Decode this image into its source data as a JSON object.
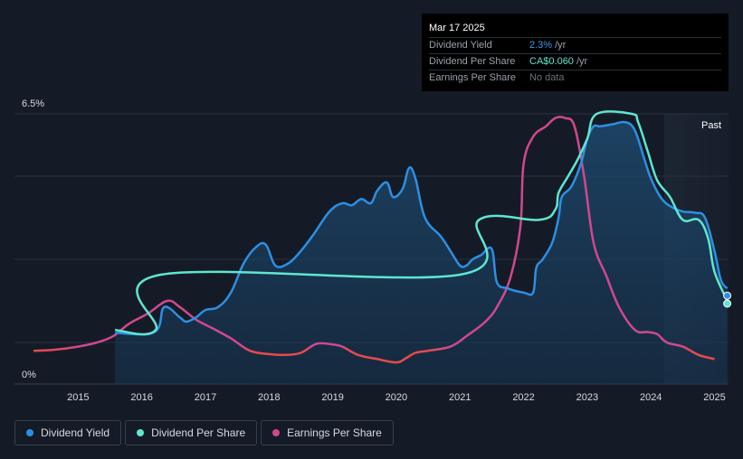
{
  "tooltip": {
    "date": "Mar 17 2025",
    "rows": [
      {
        "label": "Dividend Yield",
        "value": "2.3%",
        "unit": "/yr",
        "color": "#3b9ae8"
      },
      {
        "label": "Dividend Per Share",
        "value": "CA$0.060",
        "unit": "/yr",
        "color": "#5ee6d0"
      },
      {
        "label": "Earnings Per Share",
        "value": "No data",
        "unit": "",
        "color": "#6b7079"
      }
    ]
  },
  "past_label": "Past",
  "colors": {
    "yield": "#2d8fe3",
    "dps": "#5ee6d0",
    "eps": "#d0488f",
    "eps_negative": "#e84a4a",
    "background": "#151b26"
  },
  "legend": [
    {
      "label": "Dividend Yield",
      "color": "#2d8fe3"
    },
    {
      "label": "Dividend Per Share",
      "color": "#5ee6d0"
    },
    {
      "label": "Earnings Per Share",
      "color": "#d0488f"
    }
  ],
  "chart_data": {
    "type": "line",
    "title": "",
    "xlabel": "",
    "ylabel": "",
    "ylim": [
      0,
      6.5
    ],
    "xlim": [
      2014.0,
      2025.22
    ],
    "x_ticks": [
      "2015",
      "2016",
      "2017",
      "2018",
      "2019",
      "2020",
      "2021",
      "2022",
      "2023",
      "2024",
      "2025"
    ],
    "y_ticks": [
      "0%",
      "6.5%"
    ],
    "grid": true,
    "past_region_start": 2024.21,
    "series": [
      {
        "name": "Dividend Yield",
        "unit": "%",
        "x": [
          2015.58,
          2016.2,
          2016.35,
          2016.6,
          2016.7,
          2016.85,
          2017.0,
          2017.2,
          2017.4,
          2017.6,
          2017.8,
          2017.95,
          2018.1,
          2018.3,
          2018.5,
          2018.7,
          2018.95,
          2019.15,
          2019.3,
          2019.45,
          2019.6,
          2019.7,
          2019.85,
          2019.95,
          2020.1,
          2020.2,
          2020.3,
          2020.45,
          2020.7,
          2020.85,
          2021.0,
          2021.1,
          2021.2,
          2021.33,
          2021.5,
          2021.58,
          2021.75,
          2022.0,
          2022.15,
          2022.2,
          2022.3,
          2022.45,
          2022.55,
          2022.6,
          2022.75,
          2022.9,
          2023.0,
          2023.1,
          2023.2,
          2023.4,
          2023.6,
          2023.75,
          2023.9,
          2024.0,
          2024.15,
          2024.3,
          2024.5,
          2024.7,
          2024.85,
          2025.0,
          2025.1,
          2025.2
        ],
        "values": [
          1.23,
          1.25,
          1.85,
          1.6,
          1.5,
          1.6,
          1.78,
          1.85,
          2.2,
          2.9,
          3.3,
          3.35,
          2.85,
          2.9,
          3.2,
          3.6,
          4.15,
          4.35,
          4.3,
          4.45,
          4.35,
          4.65,
          4.85,
          4.5,
          4.7,
          5.2,
          4.95,
          4.0,
          3.55,
          3.2,
          2.85,
          2.85,
          3.0,
          3.1,
          3.25,
          2.45,
          2.3,
          2.2,
          2.2,
          2.8,
          3.0,
          3.4,
          4.0,
          4.5,
          4.75,
          5.3,
          5.9,
          6.2,
          6.2,
          6.25,
          6.3,
          6.1,
          5.4,
          4.95,
          4.5,
          4.28,
          4.15,
          4.12,
          4.0,
          3.2,
          2.5,
          2.3
        ]
      },
      {
        "name": "Dividend Per Share",
        "unit": "CA$",
        "x": [
          2015.58,
          2016.22,
          2016.3,
          2021.0,
          2021.3,
          2022.25,
          2022.5,
          2022.55,
          2022.7,
          2022.85,
          2023.0,
          2023.15,
          2023.7,
          2023.8,
          2023.95,
          2024.1,
          2024.3,
          2024.5,
          2024.75,
          2024.9,
          2025.0,
          2025.2
        ],
        "values": [
          1.3,
          1.3,
          2.63,
          2.63,
          3.95,
          3.95,
          4.2,
          4.6,
          5.0,
          5.4,
          5.9,
          6.5,
          6.5,
          6.3,
          5.6,
          4.9,
          4.5,
          3.95,
          3.95,
          3.5,
          2.7,
          2.0
        ]
      },
      {
        "name": "Earnings Per Share",
        "unit": "CA$",
        "x": [
          2014.3,
          2014.6,
          2015.0,
          2015.3,
          2015.55,
          2015.8,
          2016.1,
          2016.4,
          2016.6,
          2016.85,
          2017.1,
          2017.4,
          2017.7,
          2018.0,
          2018.25,
          2018.5,
          2018.75,
          2019.0,
          2019.15,
          2019.4,
          2019.7,
          2020.0,
          2020.15,
          2020.3,
          2020.5,
          2020.85,
          2021.1,
          2021.4,
          2021.6,
          2021.8,
          2021.95,
          2022.0,
          2022.15,
          2022.35,
          2022.5,
          2022.65,
          2022.8,
          2022.95,
          2023.1,
          2023.3,
          2023.5,
          2023.75,
          2023.95,
          2024.1,
          2024.25,
          2024.5,
          2024.75,
          2025.0
        ],
        "values": [
          0.8,
          0.82,
          0.9,
          1.0,
          1.15,
          1.45,
          1.7,
          2.0,
          1.85,
          1.55,
          1.35,
          1.1,
          0.8,
          0.72,
          0.7,
          0.75,
          0.97,
          0.95,
          0.9,
          0.7,
          0.6,
          0.52,
          0.62,
          0.75,
          0.8,
          0.9,
          1.15,
          1.5,
          1.9,
          2.6,
          3.8,
          5.3,
          5.95,
          6.2,
          6.4,
          6.4,
          6.2,
          5.0,
          3.4,
          2.6,
          1.85,
          1.3,
          1.25,
          1.2,
          1.0,
          0.9,
          0.7,
          0.6
        ]
      }
    ]
  }
}
